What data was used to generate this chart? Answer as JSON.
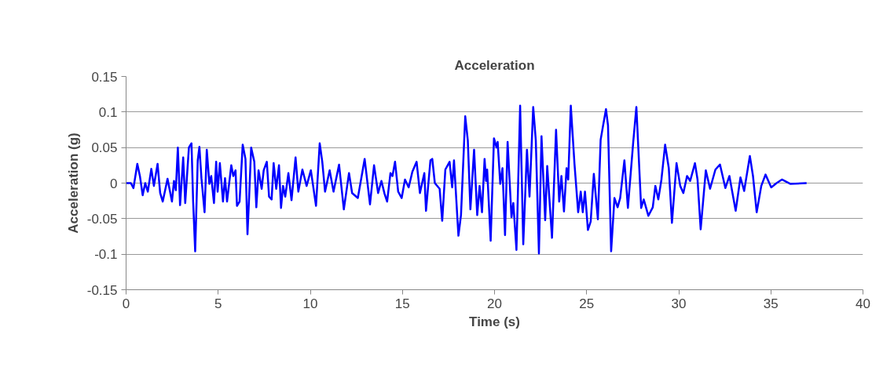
{
  "chart_data": {
    "type": "line",
    "title": "Acceleration",
    "xlabel": "Time (s)",
    "ylabel": "Acceleration (g)",
    "xlim": [
      0,
      40
    ],
    "xticks": [
      0,
      5,
      10,
      15,
      20,
      25,
      30,
      35,
      40
    ],
    "ylim": [
      -0.15,
      0.15
    ],
    "yticks": [
      -0.15,
      -0.1,
      -0.05,
      0,
      0.05,
      0.1,
      0.15
    ],
    "grid": "y",
    "marker": "none",
    "line_style": "solid",
    "series": [
      {
        "color": "#0000ff",
        "x": [
          0,
          0.26,
          0.4,
          0.61,
          0.75,
          0.9,
          1.04,
          1.18,
          1.37,
          1.51,
          1.71,
          1.85,
          1.99,
          2.25,
          2.49,
          2.6,
          2.7,
          2.81,
          2.93,
          3.1,
          3.21,
          3.41,
          3.55,
          3.64,
          3.75,
          3.89,
          3.98,
          4.09,
          4.26,
          4.38,
          4.52,
          4.62,
          4.77,
          4.89,
          4.97,
          5.09,
          5.26,
          5.37,
          5.48,
          5.71,
          5.82,
          5.94,
          6.02,
          6.16,
          6.33,
          6.48,
          6.59,
          6.68,
          6.79,
          6.96,
          7.07,
          7.19,
          7.36,
          7.47,
          7.64,
          7.76,
          7.9,
          8.01,
          8.15,
          8.3,
          8.41,
          8.52,
          8.64,
          8.81,
          8.98,
          9.2,
          9.35,
          9.57,
          9.8,
          10.03,
          10.31,
          10.51,
          10.65,
          10.8,
          11.05,
          11.26,
          11.56,
          11.82,
          12.1,
          12.27,
          12.58,
          12.95,
          13.24,
          13.46,
          13.68,
          13.86,
          14.03,
          14.17,
          14.35,
          14.46,
          14.6,
          14.77,
          14.96,
          15.14,
          15.34,
          15.54,
          15.77,
          15.95,
          16.19,
          16.28,
          16.52,
          16.62,
          16.76,
          17.02,
          17.16,
          17.33,
          17.56,
          17.7,
          17.8,
          18.04,
          18.18,
          18.41,
          18.55,
          18.69,
          18.89,
          19.06,
          19.19,
          19.32,
          19.46,
          19.54,
          19.6,
          19.79,
          19.97,
          20.11,
          20.17,
          20.31,
          20.43,
          20.57,
          20.71,
          20.92,
          21.02,
          21.19,
          21.39,
          21.56,
          21.76,
          21.9,
          22.1,
          22.24,
          22.41,
          22.55,
          22.75,
          22.86,
          23.12,
          23.34,
          23.51,
          23.63,
          23.77,
          23.91,
          24.0,
          24.14,
          24.34,
          24.54,
          24.68,
          24.79,
          24.91,
          25.07,
          25.22,
          25.39,
          25.61,
          25.76,
          25.88,
          26.05,
          26.16,
          26.33,
          26.51,
          26.68,
          26.82,
          27.05,
          27.24,
          27.53,
          27.7,
          27.96,
          28.1,
          28.35,
          28.59,
          28.73,
          28.89,
          29.06,
          29.26,
          29.46,
          29.63,
          29.88,
          30.08,
          30.25,
          30.45,
          30.62,
          30.88,
          31.02,
          31.19,
          31.47,
          31.7,
          31.99,
          32.24,
          32.53,
          32.75,
          33.09,
          33.35,
          33.55,
          33.86,
          34.03,
          34.23,
          34.48,
          34.71,
          35.02,
          35.31,
          35.6,
          36.05,
          36.94
        ],
        "values": [
          0,
          0,
          -0.007,
          0.027,
          0.01,
          -0.017,
          0,
          -0.012,
          0.02,
          -0.004,
          0.027,
          -0.014,
          -0.026,
          0.006,
          -0.026,
          0.003,
          -0.01,
          0.05,
          -0.031,
          0.036,
          -0.028,
          0.05,
          0.056,
          -0.026,
          -0.096,
          0.032,
          0.051,
          0.007,
          -0.041,
          0.047,
          -0.001,
          0.01,
          -0.028,
          0.03,
          -0.012,
          0.028,
          -0.026,
          0.007,
          -0.026,
          0.025,
          0.01,
          0.018,
          -0.032,
          -0.026,
          0.054,
          0.034,
          -0.072,
          -0.019,
          0.05,
          0.03,
          -0.034,
          0.018,
          -0.008,
          0.018,
          0.03,
          -0.019,
          -0.023,
          0.028,
          -0.008,
          0.025,
          -0.035,
          -0.004,
          -0.019,
          0.014,
          -0.024,
          0.036,
          -0.012,
          0.019,
          -0.004,
          0.018,
          -0.032,
          0.056,
          0.03,
          -0.012,
          0.018,
          -0.012,
          0.026,
          -0.037,
          0.014,
          -0.014,
          -0.021,
          0.034,
          -0.03,
          0.025,
          -0.014,
          0.003,
          -0.015,
          -0.026,
          0.014,
          0.01,
          0.03,
          -0.012,
          -0.021,
          0.005,
          -0.006,
          0.016,
          0.03,
          -0.014,
          0.014,
          -0.039,
          0.032,
          0.034,
          0,
          -0.008,
          -0.053,
          0.019,
          0.03,
          -0.006,
          0.032,
          -0.074,
          -0.045,
          0.094,
          0.06,
          -0.037,
          0.047,
          -0.045,
          -0.004,
          -0.041,
          0.034,
          0.003,
          0.019,
          -0.081,
          0.063,
          0.05,
          0.058,
          -0.001,
          0.021,
          -0.073,
          0.058,
          -0.048,
          -0.028,
          -0.094,
          0.109,
          -0.086,
          0.047,
          -0.019,
          0.107,
          0.06,
          -0.099,
          0.066,
          -0.052,
          0.024,
          -0.077,
          0.075,
          -0.026,
          0.01,
          -0.04,
          0.021,
          0.005,
          0.109,
          0.027,
          -0.041,
          -0.012,
          -0.041,
          -0.012,
          -0.066,
          -0.054,
          0.013,
          -0.051,
          0.061,
          0.079,
          0.104,
          0.081,
          -0.096,
          -0.021,
          -0.034,
          -0.021,
          0.032,
          -0.035,
          0.058,
          0.107,
          -0.035,
          -0.023,
          -0.046,
          -0.034,
          -0.004,
          -0.023,
          0.005,
          0.054,
          0.021,
          -0.056,
          0.028,
          -0.004,
          -0.014,
          0.01,
          0.003,
          0.028,
          0.005,
          -0.065,
          0.018,
          -0.008,
          0.019,
          0.026,
          -0.007,
          0.01,
          -0.039,
          0.008,
          -0.011,
          0.038,
          0.01,
          -0.041,
          -0.004,
          0.012,
          -0.006,
          0,
          0.005,
          -0.001,
          0
        ]
      }
    ]
  }
}
